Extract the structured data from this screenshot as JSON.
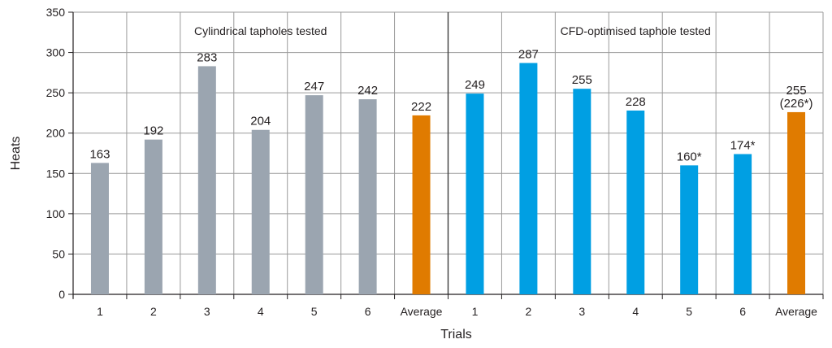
{
  "chart_data": {
    "type": "bar",
    "xlabel": "Trials",
    "ylabel": "Heats",
    "ylim": [
      0,
      350
    ],
    "yticks": [
      0,
      50,
      100,
      150,
      200,
      250,
      300,
      350
    ],
    "grid": true,
    "groups": [
      {
        "title": "Cylindrical tapholes tested",
        "categories": [
          "1",
          "2",
          "3",
          "4",
          "5",
          "6",
          "Average"
        ],
        "values": [
          163,
          192,
          283,
          204,
          247,
          242,
          222
        ],
        "labels": [
          "163",
          "192",
          "283",
          "204",
          "247",
          "242",
          "222"
        ],
        "colors": [
          "#9ba5b0",
          "#9ba5b0",
          "#9ba5b0",
          "#9ba5b0",
          "#9ba5b0",
          "#9ba5b0",
          "#e07b00"
        ]
      },
      {
        "title": "CFD-optimised taphole tested",
        "categories": [
          "1",
          "2",
          "3",
          "4",
          "5",
          "6",
          "Average"
        ],
        "values": [
          249,
          287,
          255,
          228,
          160,
          174,
          226
        ],
        "labels": [
          "249",
          "287",
          "255",
          "228",
          "160*",
          "174*",
          "255\n(226*)"
        ],
        "colors": [
          "#009fe3",
          "#009fe3",
          "#009fe3",
          "#009fe3",
          "#009fe3",
          "#009fe3",
          "#e07b00"
        ]
      }
    ]
  }
}
